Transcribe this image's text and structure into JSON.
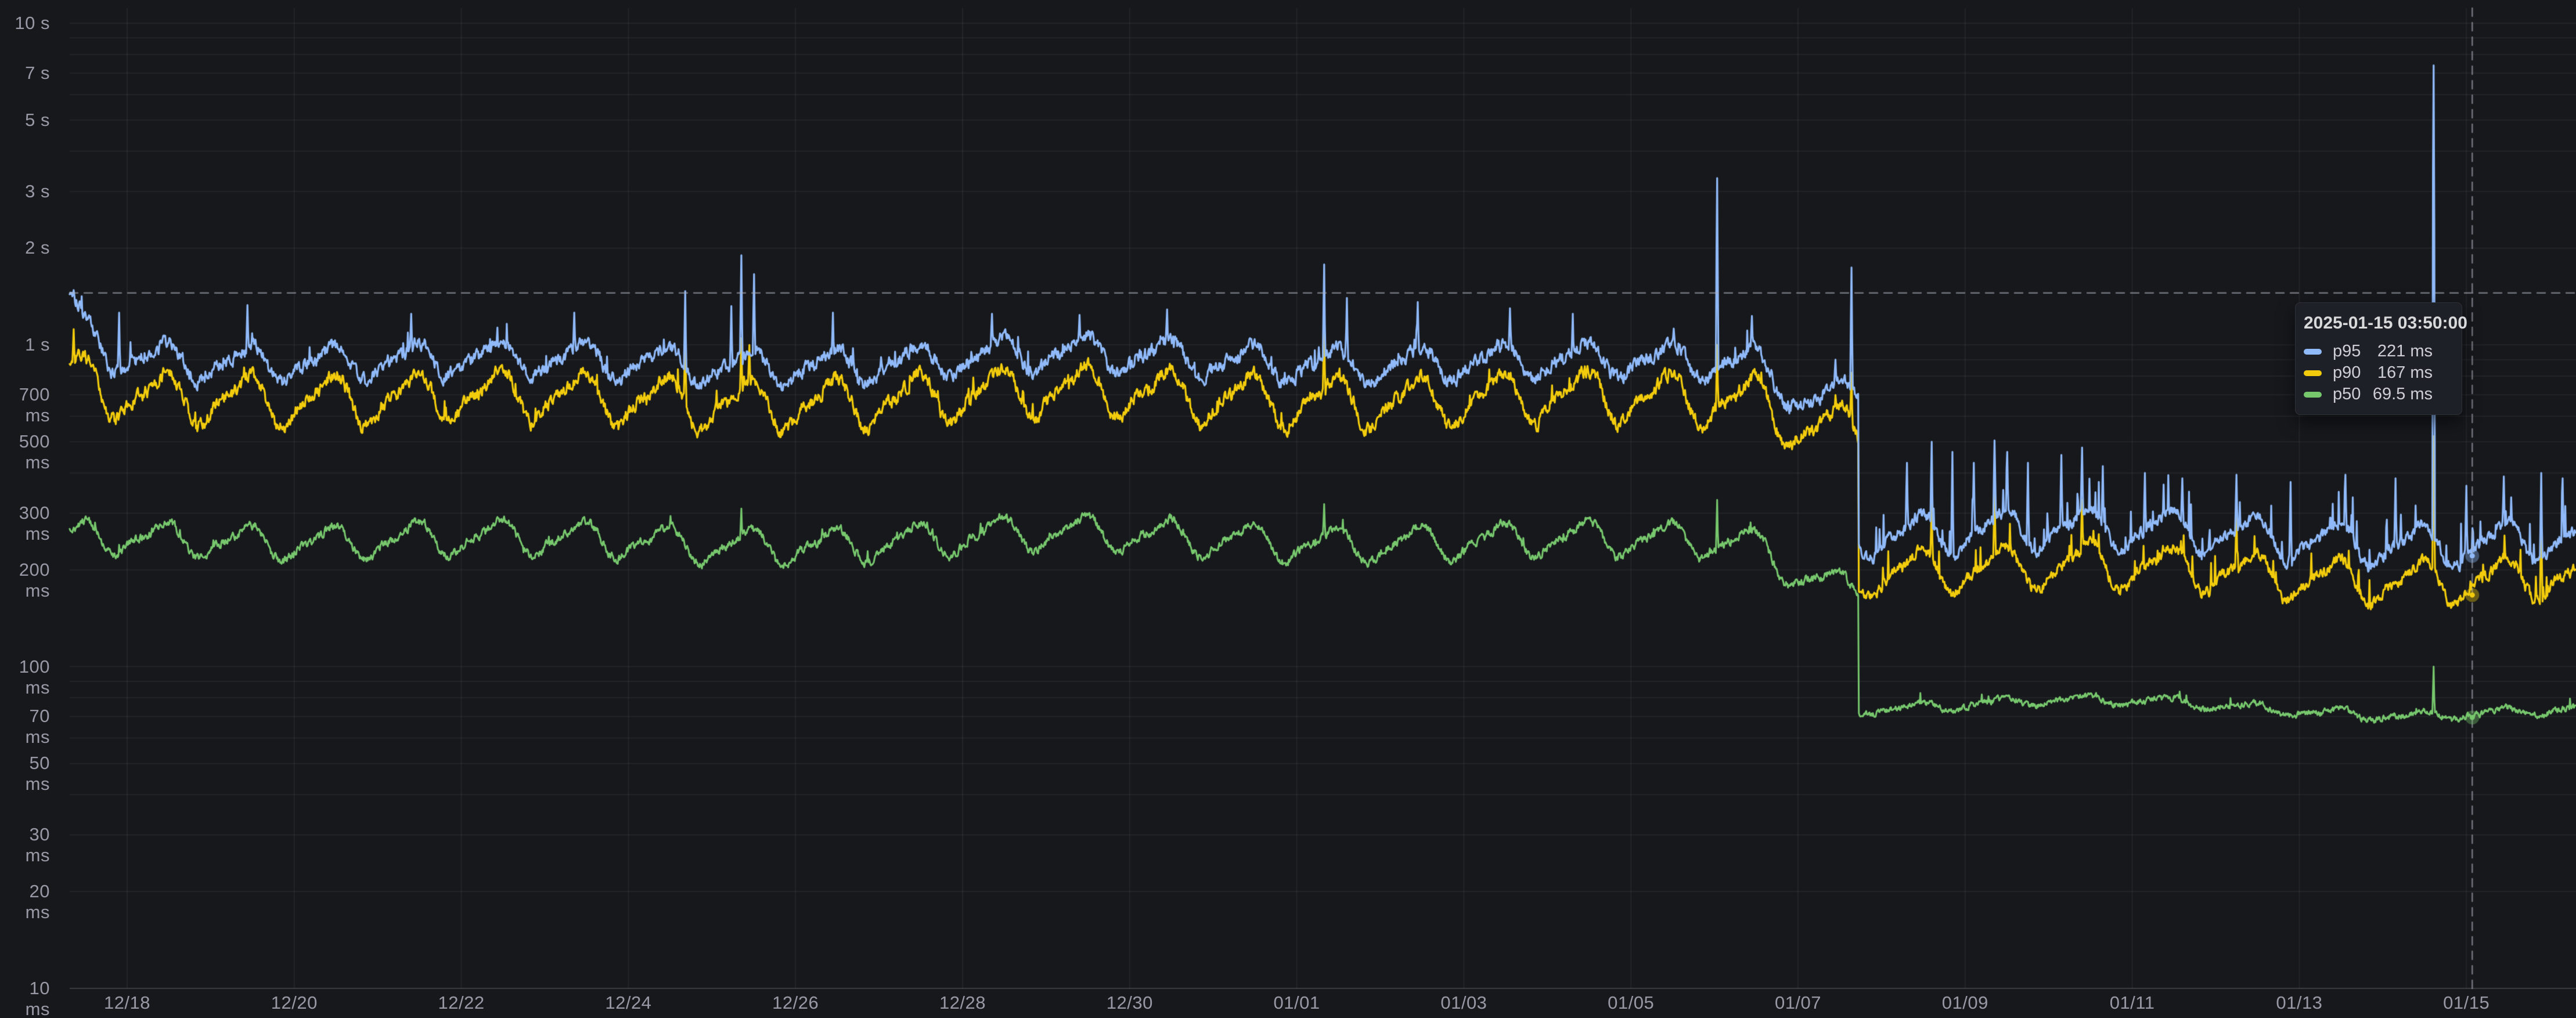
{
  "panel": {
    "background": "#16181c",
    "grid_color": "rgba(255,255,255,0.055)",
    "baseline_color": "rgba(255,255,255,0.16)",
    "label_color": "rgba(204,204,220,0.72)",
    "crosshair_color": "rgba(173,177,188,0.60)"
  },
  "tooltip": {
    "title": "2025-01-15 03:50:00",
    "rows": [
      {
        "name": "p95",
        "value": "221 ms",
        "color": "#8FB9F8"
      },
      {
        "name": "p90",
        "value": "167 ms",
        "color": "#F2CC0C"
      },
      {
        "name": "p50",
        "value": "69.5 ms",
        "color": "#77C76D"
      }
    ]
  },
  "chart_data": {
    "type": "line",
    "title": "",
    "xlabel": "",
    "ylabel": "",
    "legend_position": "tooltip-only",
    "grid": true,
    "x_axis": {
      "unit": "date",
      "t_start": 0.312,
      "t_end": 30.31,
      "days_per_tick": 2,
      "ticks": [
        {
          "label": "12/18",
          "day": 1
        },
        {
          "label": "12/20",
          "day": 3
        },
        {
          "label": "12/22",
          "day": 5
        },
        {
          "label": "12/24",
          "day": 7
        },
        {
          "label": "12/26",
          "day": 9
        },
        {
          "label": "12/28",
          "day": 11
        },
        {
          "label": "12/30",
          "day": 13
        },
        {
          "label": "01/01",
          "day": 15
        },
        {
          "label": "01/03",
          "day": 17
        },
        {
          "label": "01/05",
          "day": 19
        },
        {
          "label": "01/07",
          "day": 21
        },
        {
          "label": "01/09",
          "day": 23
        },
        {
          "label": "01/11",
          "day": 25
        },
        {
          "label": "01/13",
          "day": 27
        },
        {
          "label": "01/15",
          "day": 29
        }
      ]
    },
    "y_axis": {
      "scale": "log10",
      "unit": "ms",
      "range_ms": [
        10,
        10000
      ],
      "minor_gridline_multiples": [
        1,
        2,
        3,
        4,
        5,
        6,
        7,
        8,
        9
      ],
      "ticks": [
        {
          "label": "10 s",
          "value": 10000
        },
        {
          "label": "7 s",
          "value": 7000
        },
        {
          "label": "5 s",
          "value": 5000
        },
        {
          "label": "3 s",
          "value": 3000
        },
        {
          "label": "2 s",
          "value": 2000
        },
        {
          "label": "1 s",
          "value": 1000
        },
        {
          "label": "700 ms",
          "value": 700
        },
        {
          "label": "500 ms",
          "value": 500
        },
        {
          "label": "300 ms",
          "value": 300
        },
        {
          "label": "200 ms",
          "value": 200
        },
        {
          "label": "100 ms",
          "value": 100
        },
        {
          "label": "70 ms",
          "value": 70
        },
        {
          "label": "50 ms",
          "value": 50
        },
        {
          "label": "30 ms",
          "value": 30
        },
        {
          "label": "20 ms",
          "value": 20
        },
        {
          "label": "10 ms",
          "value": 10
        }
      ]
    },
    "dt": 0.008,
    "step_day": 21.72,
    "waveform": {
      "phase": 0.17,
      "second_harmonic": 0.33
    },
    "slow_mod": [
      [
        6.3,
        0.035,
        2.0
      ],
      [
        11.0,
        0.02,
        0.5
      ]
    ],
    "crosshair": {
      "day": 29.07,
      "value_ms": 1450,
      "time_label": "2025-01-15 03:50:00",
      "marker_values_ms": [
        221,
        167,
        69.5
      ]
    },
    "series": [
      {
        "name": "p95",
        "color": "#8FB9F8",
        "line_width": 3.2,
        "seed": 101,
        "phase1": {
          "center": 895,
          "amp": 0.11,
          "noise": 0.04,
          "jitter_prob": 0.022,
          "jitter_mag": 0.14,
          "drift": 0
        },
        "phase2": {
          "center": 262,
          "amp": 0.13,
          "noise": 0.035,
          "jitter_prob": 0.055,
          "jitter_mag": 0.32,
          "drift": -0.006
        },
        "shape": [
          [
            0.31,
            1.52
          ],
          [
            0.5,
            1.18
          ],
          [
            0.8,
            1.02
          ],
          [
            1.1,
            1.0
          ],
          [
            20.5,
            1.0
          ],
          [
            21.05,
            0.78
          ],
          [
            21.55,
            0.78
          ],
          [
            21.64,
            0.84
          ],
          [
            21.71,
            0.82
          ]
        ],
        "spikes": [
          [
            0.36,
            1480
          ],
          [
            0.9,
            1260
          ],
          [
            2.44,
            1330
          ],
          [
            4.4,
            1250
          ],
          [
            6.35,
            1260
          ],
          [
            7.68,
            1470
          ],
          [
            8.23,
            1320
          ],
          [
            8.35,
            1900
          ],
          [
            8.5,
            1660
          ],
          [
            9.45,
            1260
          ],
          [
            11.35,
            1250
          ],
          [
            12.4,
            1240
          ],
          [
            13.45,
            1290
          ],
          [
            15.33,
            1780
          ],
          [
            15.6,
            1400
          ],
          [
            16.45,
            1360
          ],
          [
            17.55,
            1300
          ],
          [
            18.3,
            1250
          ],
          [
            20.03,
            3300
          ],
          [
            20.45,
            1230
          ],
          [
            21.45,
            900
          ],
          [
            21.64,
            1740
          ],
          [
            22.3,
            430
          ],
          [
            22.6,
            500
          ],
          [
            22.85,
            465
          ],
          [
            23.1,
            430
          ],
          [
            23.35,
            505
          ],
          [
            23.5,
            465
          ],
          [
            23.75,
            430
          ],
          [
            24.15,
            455
          ],
          [
            24.4,
            480
          ],
          [
            24.65,
            420
          ],
          [
            25.15,
            400
          ],
          [
            25.6,
            385
          ],
          [
            26.25,
            395
          ],
          [
            26.9,
            375
          ],
          [
            27.55,
            395
          ],
          [
            28.15,
            385
          ],
          [
            28.61,
            7400
          ],
          [
            29.0,
            365
          ],
          [
            29.45,
            390
          ],
          [
            29.9,
            400
          ],
          [
            30.15,
            385
          ]
        ]
      },
      {
        "name": "p90",
        "color": "#F2CC0C",
        "line_width": 3.2,
        "seed": 202,
        "phase1": {
          "center": 690,
          "amp": 0.16,
          "noise": 0.04,
          "jitter_prob": 0.02,
          "jitter_mag": 0.12,
          "drift": 0
        },
        "phase2": {
          "center": 200,
          "amp": 0.14,
          "noise": 0.033,
          "jitter_prob": 0.04,
          "jitter_mag": 0.2,
          "drift": -0.005
        },
        "shape": [
          [
            0.31,
            1.17
          ],
          [
            0.6,
            1.04
          ],
          [
            1.0,
            1.0
          ],
          [
            20.5,
            1.0
          ],
          [
            21.05,
            0.82
          ],
          [
            21.71,
            0.82
          ]
        ],
        "spikes": [
          [
            0.36,
            1120
          ],
          [
            7.68,
            1100
          ],
          [
            8.35,
            1050
          ],
          [
            8.45,
            1000
          ],
          [
            15.33,
            1150
          ],
          [
            20.03,
            1000
          ],
          [
            21.64,
            820
          ],
          [
            22.6,
            330
          ],
          [
            23.35,
            345
          ],
          [
            24.4,
            330
          ],
          [
            26.25,
            305
          ],
          [
            28.61,
            520
          ],
          [
            29.9,
            310
          ]
        ]
      },
      {
        "name": "p50",
        "color": "#77C76D",
        "line_width": 3.0,
        "seed": 303,
        "phase1": {
          "center": 248,
          "amp": 0.11,
          "noise": 0.025,
          "jitter_prob": 0.012,
          "jitter_mag": 0.07,
          "drift": 0
        },
        "phase2": {
          "center": 75.5,
          "amp": 0.03,
          "noise": 0.018,
          "jitter_prob": 0.01,
          "jitter_mag": 0.08,
          "drift": -0.003
        },
        "shape": [
          [
            0.31,
            0.97
          ],
          [
            1.0,
            1.0
          ],
          [
            20.4,
            1.0
          ],
          [
            21.05,
            0.8
          ],
          [
            21.5,
            0.72
          ],
          [
            21.71,
            0.72
          ]
        ],
        "spikes": [
          [
            8.35,
            310
          ],
          [
            15.33,
            320
          ],
          [
            20.03,
            330
          ],
          [
            28.61,
            100
          ]
        ]
      }
    ]
  }
}
